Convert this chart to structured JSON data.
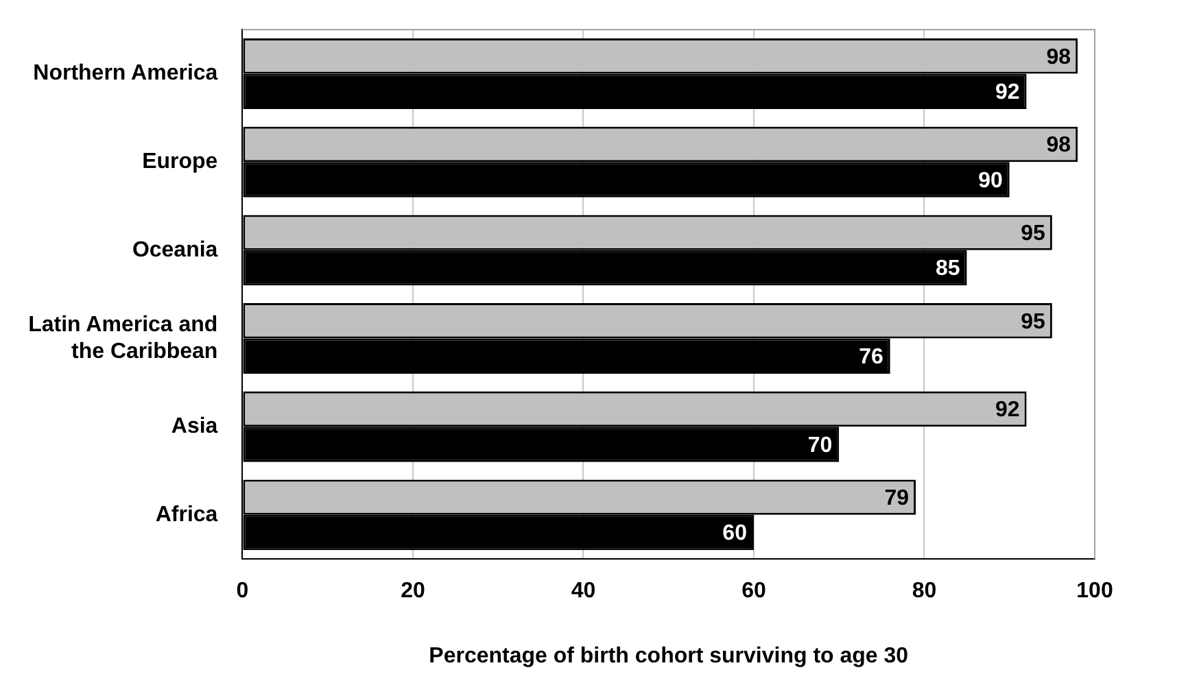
{
  "chart_data": {
    "type": "bar",
    "orientation": "horizontal",
    "xlabel": "Percentage of birth cohort surviving to age 30",
    "categories": [
      "Northern America",
      "Europe",
      "Oceania",
      "Latin America and the Caribbean",
      "Asia",
      "Africa"
    ],
    "series": [
      {
        "color": "#c0c0c0",
        "values": [
          98,
          98,
          95,
          95,
          92,
          79
        ]
      },
      {
        "color": "#000000",
        "values": [
          92,
          90,
          85,
          76,
          70,
          60
        ]
      }
    ],
    "xlim": [
      0,
      100
    ],
    "xticks": [
      0,
      20,
      40,
      60,
      80,
      100
    ],
    "grid": "x",
    "data_labels": true
  }
}
